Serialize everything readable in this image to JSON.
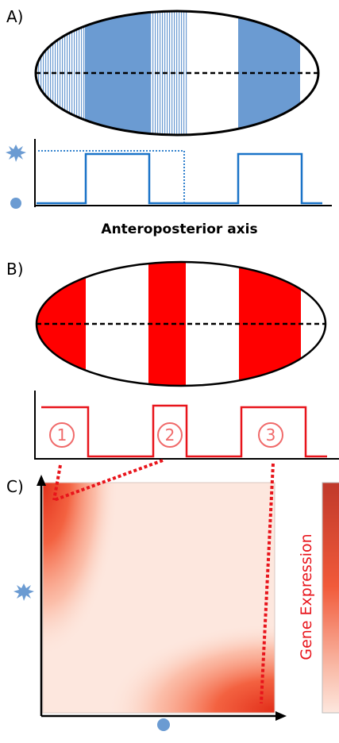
{
  "panels": {
    "a": {
      "label": "A)",
      "axis_title": "Anteroposterior axis"
    },
    "b": {
      "label": "B)",
      "stripes": [
        "1",
        "2",
        "3"
      ]
    },
    "c": {
      "label": "C)",
      "colorbar_label": "Gene Expression"
    }
  },
  "colors": {
    "blue": "#6b9bd2",
    "blue_line": "#1a73c8",
    "red": "#ff0000",
    "red_line": "#e8141b",
    "heat_light": "#fde7de",
    "heat_dark": "#e8341e"
  },
  "icons": {
    "high_marker": "starburst-icon",
    "low_marker": "dot-icon"
  }
}
